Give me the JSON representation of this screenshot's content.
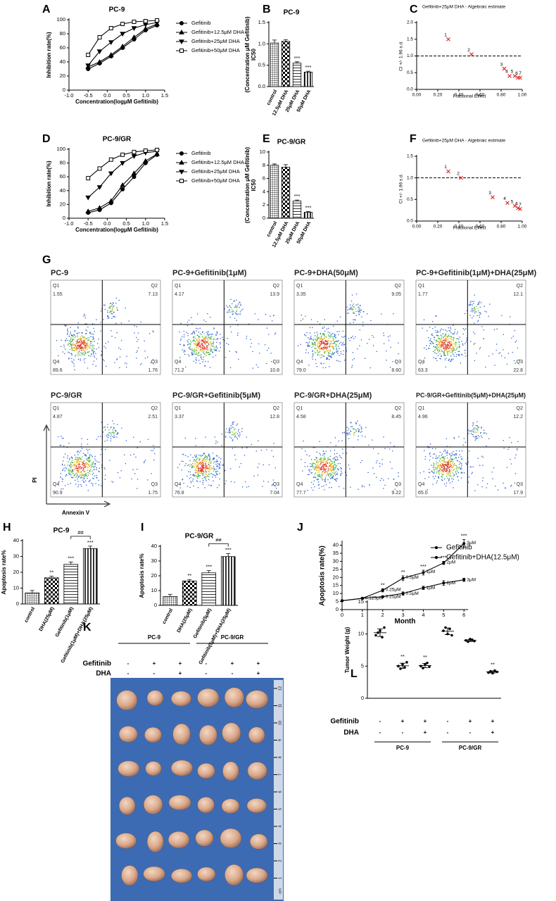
{
  "chart_data": [
    {
      "panel": "A",
      "type": "line",
      "title": "PC-9",
      "xlabel": "Concentration(logμM Gefitinib)",
      "ylabel": "Inhibition rate(%)",
      "x": [
        -0.5,
        -0.2,
        0.1,
        0.4,
        0.7,
        1.0,
        1.3
      ],
      "xlim": [
        -1,
        1.5
      ],
      "xticks": [
        {
          "value": -1,
          "label": "-1.0"
        },
        {
          "value": -0.5,
          "label": "-0.5"
        },
        {
          "value": 0,
          "label": "0.0"
        },
        {
          "value": 0.5,
          "label": "0.5"
        },
        {
          "value": 1,
          "label": "1.0"
        },
        {
          "value": 1.5,
          "label": "1.5"
        }
      ],
      "ylim": [
        0,
        100
      ],
      "yticks": [
        0,
        20,
        40,
        60,
        80,
        100
      ],
      "legend": "right",
      "series": [
        {
          "name": "Gefitinib",
          "marker": "circle",
          "color": "#000000",
          "values": [
            30,
            38,
            48,
            60,
            72,
            85,
            92
          ]
        },
        {
          "name": "Gefitinib+12.5μM DHA",
          "marker": "triangle",
          "color": "#000000",
          "values": [
            33,
            40,
            50,
            62,
            75,
            87,
            94
          ]
        },
        {
          "name": "Gefitinib+25μM DHA",
          "marker": "triangle-down",
          "color": "#000000",
          "values": [
            35,
            55,
            68,
            80,
            88,
            93,
            96
          ]
        },
        {
          "name": "Gefitinib+50μM DHA",
          "marker": "square",
          "color": "#000000",
          "values": [
            50,
            75,
            88,
            94,
            97,
            98,
            99
          ]
        }
      ]
    },
    {
      "panel": "B",
      "type": "bar",
      "title": "PC-9",
      "ylabel": [
        "IC50",
        "(Concentration μM Gefitinib)"
      ],
      "categories": [
        "control",
        "12.5μM DHA",
        "25μM DHA",
        "50μM DHA"
      ],
      "values": [
        1.02,
        1.06,
        0.55,
        0.34
      ],
      "errors": [
        0.07,
        0.04,
        0.03,
        0.02
      ],
      "significance": [
        null,
        null,
        "***",
        "***"
      ],
      "patterns": [
        "grid",
        "check",
        "horizontal",
        "vertical"
      ],
      "ylim": [
        0,
        1.5
      ],
      "yticks": [
        {
          "value": 0,
          "label": "0.0"
        },
        {
          "value": 0.5,
          "label": "0.5"
        },
        {
          "value": 1,
          "label": "1.0"
        },
        {
          "value": 1.5,
          "label": "1.5"
        }
      ]
    },
    {
      "panel": "C",
      "type": "scatter",
      "title": "Gefitinib+25μM DHA - Algebraic estimate",
      "xlabel": "Fractional Effect",
      "ylabel": "CI +/- 1.96 s.d.",
      "x": [
        0.3,
        0.52,
        0.83,
        0.88,
        0.93,
        0.96,
        0.98
      ],
      "values": [
        1.5,
        1.05,
        0.62,
        0.4,
        0.4,
        0.35,
        0.35
      ],
      "point_labels": [
        "1",
        "2",
        "3",
        "4",
        "5",
        "6",
        "7"
      ],
      "color": "#e02020",
      "refline": 1,
      "xlim": [
        0,
        1
      ],
      "xticks": [
        {
          "value": 0,
          "label": "0.00"
        },
        {
          "value": 0.2,
          "label": "0.20"
        },
        {
          "value": 0.4,
          "label": "0.40"
        },
        {
          "value": 0.6,
          "label": "0.60"
        },
        {
          "value": 0.8,
          "label": "0.80"
        },
        {
          "value": 1,
          "label": "1.00"
        }
      ],
      "ylim": [
        0,
        2
      ],
      "yticks": [
        {
          "value": 0,
          "label": "0.0"
        },
        {
          "value": 0.5,
          "label": "0.5"
        },
        {
          "value": 1,
          "label": "1.0"
        },
        {
          "value": 1.5,
          "label": "1.5"
        },
        {
          "value": 2,
          "label": "2.0"
        }
      ]
    },
    {
      "panel": "D",
      "type": "line",
      "title": "PC-9/GR",
      "xlabel": "Concentration(logμM Gefitinib)",
      "ylabel": "Inhibition rate(%)",
      "x": [
        -0.5,
        -0.2,
        0.1,
        0.4,
        0.7,
        1.0,
        1.3
      ],
      "xlim": [
        -1,
        1.5
      ],
      "xticks": [
        {
          "value": -1,
          "label": "-1.0"
        },
        {
          "value": -0.5,
          "label": "-0.5"
        },
        {
          "value": 0,
          "label": "0.0"
        },
        {
          "value": 0.5,
          "label": "0.5"
        },
        {
          "value": 1,
          "label": "1.0"
        },
        {
          "value": 1.5,
          "label": "1.5"
        }
      ],
      "ylim": [
        0,
        100
      ],
      "yticks": [
        0,
        20,
        40,
        60,
        80,
        100
      ],
      "legend": "right",
      "series": [
        {
          "name": "Gefitinib",
          "marker": "circle",
          "color": "#000000",
          "values": [
            8,
            12,
            22,
            42,
            60,
            80,
            92
          ]
        },
        {
          "name": "Gefitinib+12.5μM DHA",
          "marker": "triangle",
          "color": "#000000",
          "values": [
            10,
            15,
            25,
            48,
            65,
            83,
            93
          ]
        },
        {
          "name": "Gefitinib+25μM DHA",
          "marker": "triangle-down",
          "color": "#000000",
          "values": [
            30,
            45,
            65,
            80,
            90,
            95,
            97
          ]
        },
        {
          "name": "Gefitinib+50μM DHA",
          "marker": "square",
          "color": "#000000",
          "values": [
            58,
            72,
            85,
            92,
            96,
            98,
            99
          ]
        }
      ]
    },
    {
      "panel": "E",
      "type": "bar",
      "title": "PC-9/GR",
      "ylabel": [
        "IC50",
        "(Concentration μM Gefitinib)"
      ],
      "categories": [
        "control",
        "12.5μM DHA",
        "25μM DHA",
        "50μM DHA"
      ],
      "values": [
        8.0,
        7.7,
        2.6,
        0.9
      ],
      "errors": [
        0.2,
        0.4,
        0.15,
        0.1
      ],
      "significance": [
        null,
        null,
        "***",
        "***"
      ],
      "patterns": [
        "grid",
        "check",
        "horizontal",
        "vertical"
      ],
      "ylim": [
        0,
        10
      ],
      "yticks": [
        0,
        2,
        4,
        6,
        8,
        10
      ]
    },
    {
      "panel": "F",
      "type": "scatter",
      "title": "Gefitinib+25μM DHA - Algebraic estimate",
      "xlabel": "Fractional Effect",
      "ylabel": "CI +/- 1.96 s.d.",
      "x": [
        0.3,
        0.42,
        0.72,
        0.86,
        0.93,
        0.96,
        0.98
      ],
      "values": [
        1.15,
        1.0,
        0.55,
        0.42,
        0.35,
        0.3,
        0.28
      ],
      "point_labels": [
        "1",
        "2",
        "3",
        "4",
        "5",
        "6",
        "7"
      ],
      "color": "#e02020",
      "refline": 1,
      "xlim": [
        0,
        1
      ],
      "xticks": [
        {
          "value": 0,
          "label": "0.00"
        },
        {
          "value": 0.2,
          "label": "0.20"
        },
        {
          "value": 0.4,
          "label": "0.40"
        },
        {
          "value": 0.6,
          "label": "0.60"
        },
        {
          "value": 0.8,
          "label": "0.80"
        },
        {
          "value": 1,
          "label": "1.00"
        }
      ],
      "ylim": [
        0,
        1.5
      ],
      "yticks": [
        {
          "value": 0,
          "label": "0.0"
        },
        {
          "value": 0.5,
          "label": "0.5"
        },
        {
          "value": 1,
          "label": "1.0"
        },
        {
          "value": 1.5,
          "label": "1.5"
        }
      ]
    },
    {
      "panel": "H",
      "type": "bar",
      "title": "PC-9",
      "ylabel": [
        "Apoptosis rate%"
      ],
      "categories": [
        "control",
        "DHA(25μM)",
        "Gefitinib(1μM)",
        "Gefitinib(1μM)+DHA(25μM)"
      ],
      "values": [
        7,
        16.5,
        25,
        35
      ],
      "errors": [
        1.5,
        1,
        1.5,
        1.5
      ],
      "significance": [
        null,
        "**",
        "***",
        "***"
      ],
      "comparison": {
        "between": [
          2,
          3
        ],
        "label": "##"
      },
      "patterns": [
        "grid",
        "check",
        "horizontal",
        "vertical"
      ],
      "ylim": [
        0,
        40
      ],
      "yticks": [
        0,
        10,
        20,
        30,
        40
      ]
    },
    {
      "panel": "I",
      "type": "bar",
      "title": "PC-9/GR",
      "ylabel": [
        "Apoptosis rate%"
      ],
      "categories": [
        "control",
        "DHA(25μM)",
        "Gefitinib(5μM)",
        "Gefitinib(5μM)+DHA(25μM)"
      ],
      "values": [
        6,
        16.5,
        22,
        33
      ],
      "errors": [
        1.5,
        1,
        1.5,
        2
      ],
      "significance": [
        null,
        "**",
        "***",
        "***"
      ],
      "comparison": {
        "between": [
          2,
          3
        ],
        "label": "##"
      },
      "patterns": [
        "grid",
        "check",
        "horizontal",
        "vertical"
      ],
      "ylim": [
        0,
        40
      ],
      "yticks": [
        0,
        10,
        20,
        30,
        40
      ]
    },
    {
      "panel": "J",
      "type": "line",
      "xlabel": "Month",
      "ylabel": "Apoptosis rate(%)",
      "x": [
        0,
        1,
        2,
        3,
        4,
        5,
        6
      ],
      "xlim": [
        0,
        6.2
      ],
      "xticks": [
        0,
        1,
        2,
        3,
        4,
        5,
        6
      ],
      "ylim": [
        0,
        42
      ],
      "yticks": [
        0,
        5,
        10,
        15,
        20,
        25,
        30,
        35,
        40
      ],
      "legend": "upper right",
      "series": [
        {
          "name": "Gefitinib",
          "marker": "dot",
          "color": "#000000",
          "values": [
            5.5,
            7,
            8,
            10,
            13.5,
            16.5,
            18.5
          ],
          "errors": [
            0.5,
            0.5,
            0.5,
            1,
            1,
            1.5,
            1
          ],
          "point_labels": [
            null,
            "0.125μM",
            "0.25μM",
            "0.5μM",
            "1μM",
            "2μM",
            "3μM"
          ]
        },
        {
          "name": "Gefitinib+DHA(12.5μM)",
          "marker": "dot",
          "color": "#000000",
          "values": [
            5.5,
            7,
            12,
            19.5,
            23,
            29,
            41
          ],
          "errors": [
            0.5,
            0.5,
            1,
            1.5,
            1.5,
            1,
            2.5
          ],
          "point_labels": [
            null,
            null,
            "0.25μM",
            "0.5μM",
            "1μM",
            "2μM",
            "3μM"
          ],
          "significance": [
            null,
            null,
            "**",
            "**",
            "***",
            "***",
            "***"
          ]
        }
      ]
    },
    {
      "panel": "L",
      "type": "dotplot",
      "ylabel": "Tumor Weight (g)",
      "ylim": [
        0,
        15
      ],
      "yticks": [
        0,
        5,
        10,
        15
      ],
      "groups": [
        [
          9.8,
          10.2,
          10.5,
          9.5,
          11
        ],
        [
          5,
          4.6,
          5.3,
          4.8,
          5.6
        ],
        [
          5,
          4.7,
          5.3,
          5.5,
          4.9
        ],
        [
          10.5,
          11,
          10,
          10.8,
          9.8
        ],
        [
          9,
          8.8,
          9.2,
          9.1,
          8.9
        ],
        [
          4,
          4.2,
          3.9,
          4.3,
          4.1
        ]
      ],
      "significance": [
        null,
        "**",
        "**",
        null,
        null,
        "**"
      ],
      "treatments": [
        {
          "name": "Gefitinib",
          "signs": [
            "-",
            "+",
            "+",
            "-",
            "+",
            "+"
          ]
        },
        {
          "name": "DHA",
          "signs": [
            "-",
            "-",
            "+",
            "-",
            "-",
            "+"
          ]
        }
      ],
      "group_labels": [
        "PC-9",
        "PC-9/GR"
      ]
    }
  ],
  "flow_cytometry": {
    "panel": "G",
    "xlabel": "Annexin V",
    "ylabel": "PI",
    "quadrant_names": [
      "Q1",
      "Q2",
      "Q3",
      "Q4"
    ],
    "plots": [
      {
        "title": "PC-9",
        "quadrants": [
          "1.55",
          "7.13",
          "1.76",
          "89.6"
        ]
      },
      {
        "title": "PC-9+Gefitinib(1μM)",
        "quadrants": [
          "4.17",
          "13.9",
          "10.8",
          "71.2"
        ]
      },
      {
        "title": "PC-9+DHA(50μM)",
        "quadrants": [
          "3.35",
          "9.05",
          "8.60",
          "79.0"
        ]
      },
      {
        "title": "PC-9+Gefitinib(1μM)+DHA(25μM)",
        "quadrants": [
          "1.77",
          "12.1",
          "22.8",
          "63.3"
        ]
      },
      {
        "title": "PC-9/GR",
        "quadrants": [
          "4.87",
          "2.51",
          "1.75",
          "90.9"
        ]
      },
      {
        "title": "PC-9/GR+Gefitinib(5μM)",
        "quadrants": [
          "3.37",
          "12.8",
          "7.04",
          "76.8"
        ]
      },
      {
        "title": "PC-9/GR+DHA(25μM)",
        "quadrants": [
          "4.58",
          "8.45",
          "9.22",
          "77.7"
        ]
      },
      {
        "title": "PC-9/GR+Gefitinib(5μM)+DHA(25μM)",
        "quadrants": [
          "4.96",
          "12.2",
          "17.9",
          "65.0"
        ]
      }
    ]
  },
  "tumor_photo": {
    "panel": "K",
    "groups": [
      "PC-9",
      "PC-9/GR"
    ],
    "treatments": [
      {
        "name": "Gefitinib",
        "signs": [
          "-",
          "+",
          "+",
          "-",
          "+",
          "+"
        ]
      },
      {
        "name": "DHA",
        "signs": [
          "-",
          "-",
          "+",
          "-",
          "-",
          "+"
        ]
      }
    ],
    "ruler_ticks": [
      1,
      2,
      3,
      4,
      5,
      6,
      7,
      8,
      9,
      10,
      11,
      12
    ],
    "ruler_unit": "cm"
  }
}
